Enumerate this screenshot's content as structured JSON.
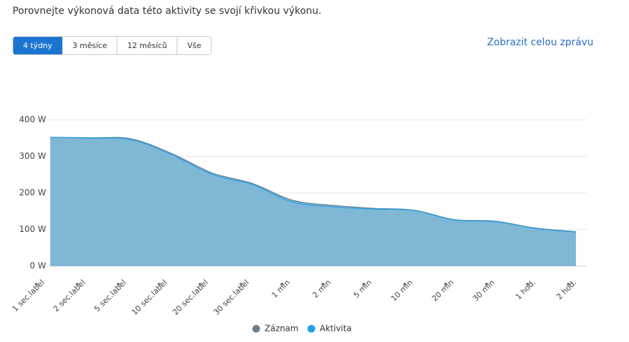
{
  "header": {
    "title": "Porovnejte výkonová data této aktivity se svojí křivkou výkonu."
  },
  "tabs": [
    "4 týdny",
    "3 měsíce",
    "12 měsíců",
    "Vše"
  ],
  "active_tab": 0,
  "link": "Zobrazit celou zprávu",
  "chart_data": {
    "type": "area",
    "categories": [
      "1 sec.label",
      "2 sec.label",
      "5 sec.label",
      "10 sec.label",
      "20 sec.label",
      "30 sec.label",
      "1 min",
      "2 min",
      "5 min",
      "10 min",
      "20 min",
      "30 min",
      "1 hod.",
      "2 hod."
    ],
    "series": [
      {
        "name": "Záznam",
        "color": "#6b7f8f",
        "values": [
          352,
          351,
          348,
          308,
          255,
          226,
          180,
          166,
          158,
          153,
          127,
          123,
          104,
          94
        ]
      },
      {
        "name": "Aktivita",
        "color": "#1ea0e6",
        "values": [
          352,
          350,
          346,
          305,
          251,
          223,
          175,
          162,
          156,
          152,
          126,
          122,
          103,
          93
        ]
      }
    ],
    "area_color": "#7fb7d5",
    "ylim": [
      0,
      400
    ],
    "yticks": [
      {
        "value": 0,
        "label": "0 W"
      },
      {
        "value": 100,
        "label": "100 W"
      },
      {
        "value": 200,
        "label": "200 W"
      },
      {
        "value": 300,
        "label": "300 W"
      },
      {
        "value": 400,
        "label": "400 W"
      }
    ],
    "grid": true
  }
}
